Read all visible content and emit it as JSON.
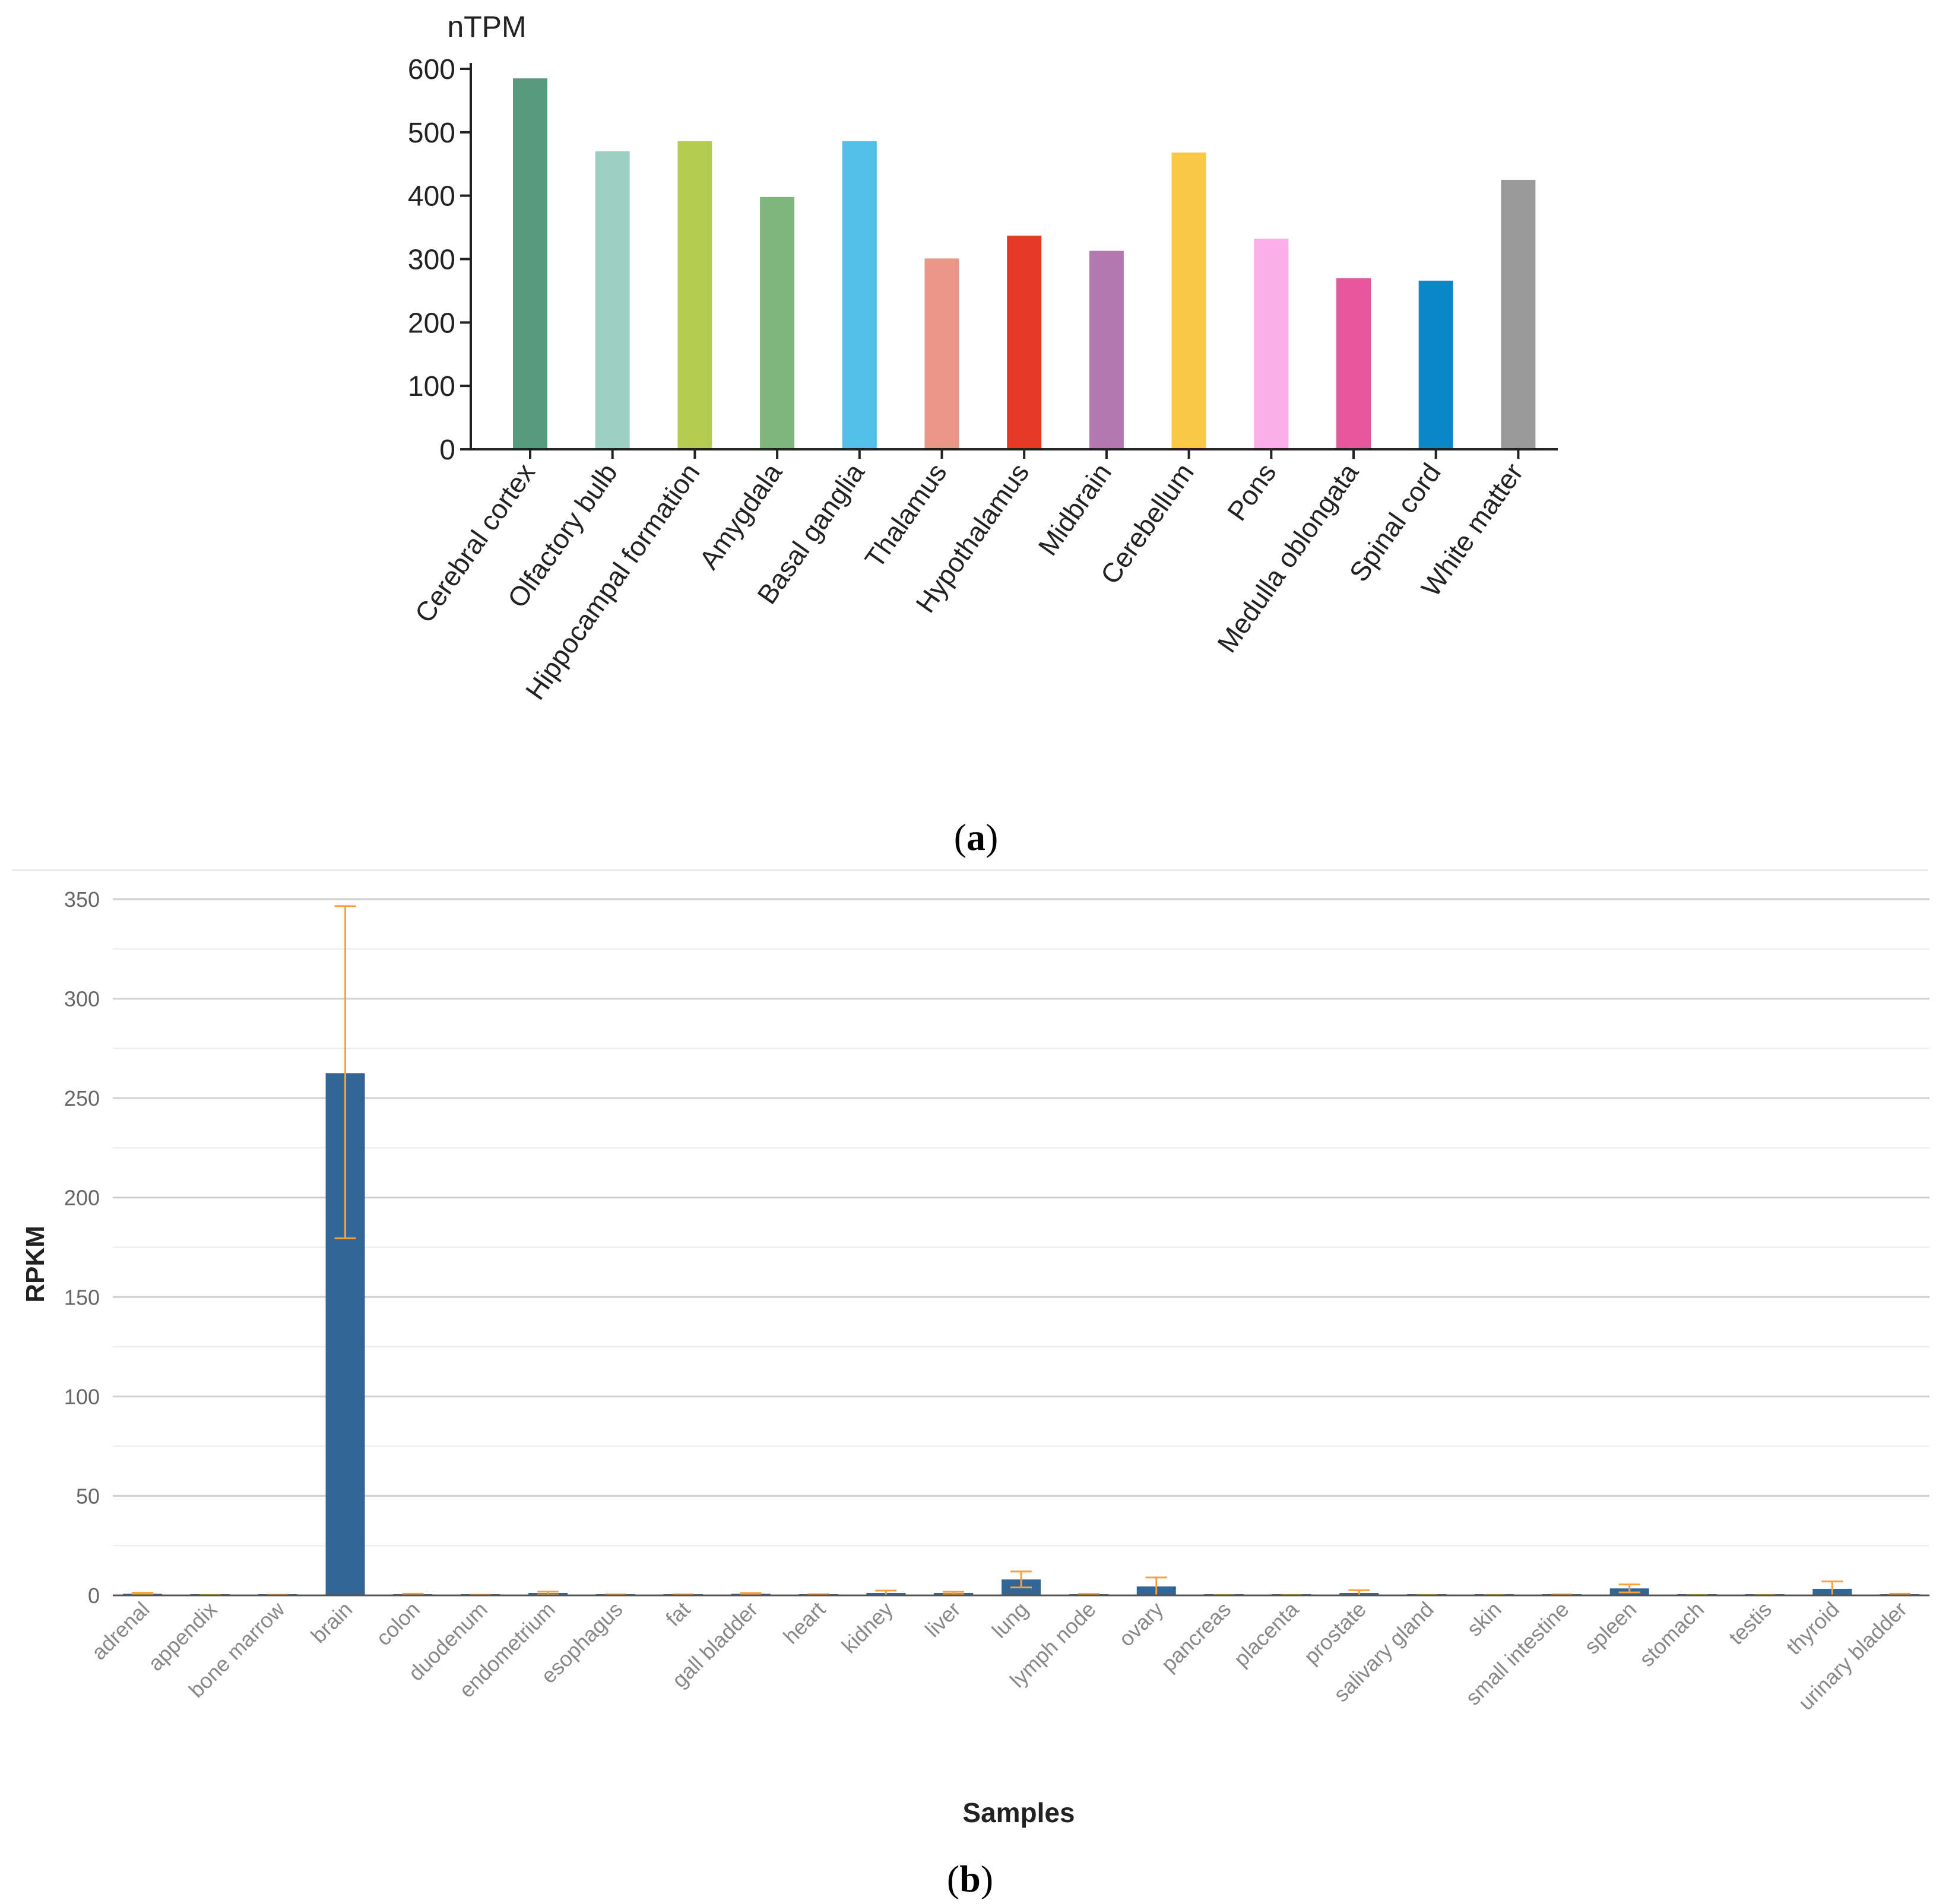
{
  "panel_a_label": "a",
  "panel_b_label": "b",
  "chart_data": [
    {
      "type": "bar",
      "panel": "a",
      "title": "",
      "ylabel": "nTPM",
      "xlabel": "",
      "ylim": [
        0,
        600
      ],
      "yticks": [
        0,
        100,
        200,
        300,
        400,
        500,
        600
      ],
      "categories": [
        "Cerebral cortex",
        "Olfactory bulb",
        "Hippocampal formation",
        "Amygdala",
        "Basal ganglia",
        "Thalamus",
        "Hypothalamus",
        "Midbrain",
        "Cerebellum",
        "Pons",
        "Medulla oblongata",
        "Spinal cord",
        "White matter"
      ],
      "values": [
        585,
        470,
        486,
        398,
        486,
        301,
        337,
        313,
        468,
        332,
        270,
        266,
        425
      ],
      "colors": [
        "#589a7e",
        "#9dd1c3",
        "#b5cb52",
        "#80b57c",
        "#52bfe8",
        "#eb9488",
        "#e43a26",
        "#b478b0",
        "#f9c845",
        "#fbaee7",
        "#e8569c",
        "#0b88cc",
        "#9a9a9a"
      ],
      "grid": false
    },
    {
      "type": "bar",
      "panel": "b",
      "title": "",
      "ylabel": "RPKM",
      "xlabel": "Samples",
      "ylim": [
        0,
        350
      ],
      "yticks": [
        0,
        50,
        100,
        150,
        200,
        250,
        300,
        350
      ],
      "categories": [
        "adrenal",
        "appendix",
        "bone marrow",
        "brain",
        "colon",
        "duodenum",
        "endometrium",
        "esophagus",
        "fat",
        "gall bladder",
        "heart",
        "kidney",
        "liver",
        "lung",
        "lymph node",
        "ovary",
        "pancreas",
        "placenta",
        "prostate",
        "salivary gland",
        "skin",
        "small intestine",
        "spleen",
        "stomach",
        "testis",
        "thyroid",
        "urinary bladder"
      ],
      "values": [
        0.8,
        0.1,
        0.2,
        262.5,
        0.5,
        0.2,
        1.2,
        0.3,
        0.3,
        0.8,
        0.4,
        1.2,
        1.2,
        8.0,
        0.4,
        4.5,
        0.1,
        0.1,
        1.2,
        0.1,
        0.1,
        0.3,
        3.5,
        0.1,
        0.1,
        3.3,
        0.5
      ],
      "error_low": [
        0.3,
        0.0,
        0.1,
        179.5,
        0.2,
        0.1,
        0.5,
        0.1,
        0.1,
        0.4,
        0.2,
        0.0,
        0.6,
        4.0,
        0.1,
        0.0,
        0.0,
        0.0,
        0.0,
        0.0,
        0.0,
        0.1,
        1.5,
        0.0,
        0.0,
        0.0,
        0.2
      ],
      "error_high": [
        1.3,
        0.2,
        0.3,
        346.5,
        0.8,
        0.3,
        1.9,
        0.5,
        0.5,
        1.2,
        0.6,
        2.4,
        1.8,
        12.0,
        0.7,
        9.0,
        0.2,
        0.2,
        2.6,
        0.2,
        0.2,
        0.5,
        5.5,
        0.2,
        0.2,
        7.0,
        0.8
      ],
      "bar_color": "#346597",
      "error_color": "#f7a13e",
      "grid": true
    }
  ]
}
